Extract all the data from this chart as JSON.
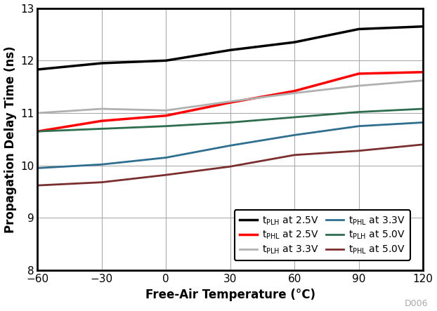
{
  "title": "",
  "xlabel": "Free-Air Temperature (°C)",
  "ylabel": "Propagation Delay Time (ns)",
  "xlim": [
    -60,
    120
  ],
  "ylim": [
    8,
    13
  ],
  "xticks": [
    -60,
    -30,
    0,
    30,
    60,
    90,
    120
  ],
  "yticks": [
    8,
    9,
    10,
    11,
    12,
    13
  ],
  "background_color": "#ffffff",
  "watermark": "D006",
  "series": [
    {
      "label_type": "PLH",
      "label_voltage": "2.5V",
      "color": "#000000",
      "linewidth": 2.5,
      "x": [
        -60,
        -30,
        0,
        30,
        60,
        90,
        120
      ],
      "y": [
        11.83,
        11.95,
        12.0,
        12.2,
        12.35,
        12.6,
        12.65
      ]
    },
    {
      "label_type": "PHL",
      "label_voltage": "2.5V",
      "color": "#ff0000",
      "linewidth": 2.5,
      "x": [
        -60,
        -30,
        0,
        30,
        60,
        90,
        120
      ],
      "y": [
        10.65,
        10.85,
        10.95,
        11.2,
        11.42,
        11.75,
        11.78
      ]
    },
    {
      "label_type": "PLH",
      "label_voltage": "3.3V",
      "color": "#b0b0b0",
      "linewidth": 2.0,
      "x": [
        -60,
        -30,
        0,
        30,
        60,
        90,
        120
      ],
      "y": [
        11.0,
        11.08,
        11.05,
        11.22,
        11.38,
        11.52,
        11.62
      ]
    },
    {
      "label_type": "PHL",
      "label_voltage": "3.3V",
      "color": "#2e6e8e",
      "linewidth": 2.0,
      "x": [
        -60,
        -30,
        0,
        30,
        60,
        90,
        120
      ],
      "y": [
        9.95,
        10.02,
        10.15,
        10.38,
        10.58,
        10.75,
        10.82
      ]
    },
    {
      "label_type": "PLH",
      "label_voltage": "5.0V",
      "color": "#2e6e4e",
      "linewidth": 2.0,
      "x": [
        -60,
        -30,
        0,
        30,
        60,
        90,
        120
      ],
      "y": [
        10.65,
        10.7,
        10.75,
        10.82,
        10.92,
        11.02,
        11.08
      ]
    },
    {
      "label_type": "PHL",
      "label_voltage": "5.0V",
      "color": "#7a2e2e",
      "linewidth": 2.0,
      "x": [
        -60,
        -30,
        0,
        30,
        60,
        90,
        120
      ],
      "y": [
        9.62,
        9.68,
        9.82,
        9.98,
        10.2,
        10.28,
        10.4
      ]
    }
  ],
  "legend_order": [
    0,
    3,
    1,
    4,
    2,
    5
  ],
  "spine_linewidth": 2.0,
  "grid_color": "#aaaaaa",
  "grid_linewidth": 0.8,
  "tick_fontsize": 11,
  "label_fontsize": 12,
  "legend_fontsize": 10
}
